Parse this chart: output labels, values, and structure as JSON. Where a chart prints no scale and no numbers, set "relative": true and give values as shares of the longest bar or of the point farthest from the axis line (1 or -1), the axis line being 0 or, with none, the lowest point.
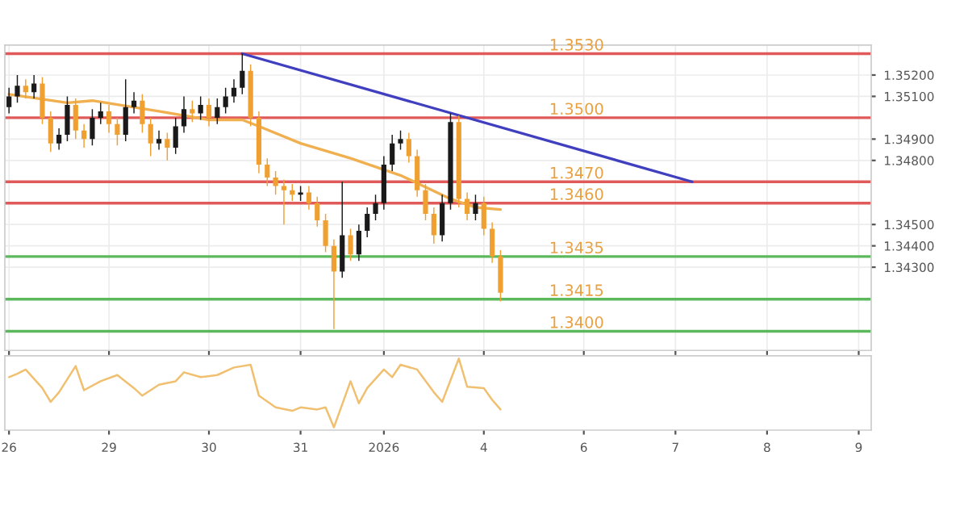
{
  "chart_data": [
    {
      "type": "candlestick",
      "categories": [
        "26",
        null,
        null,
        null,
        null,
        null,
        null,
        null,
        null,
        null,
        null,
        null,
        "29",
        null,
        null,
        null,
        null,
        null,
        null,
        null,
        null,
        null,
        null,
        null,
        "30",
        null,
        null,
        null,
        null,
        null,
        null,
        null,
        null,
        null,
        null,
        "31",
        null,
        null,
        null,
        null,
        null,
        null,
        null,
        null,
        null,
        "2026",
        null,
        null,
        null,
        null,
        null,
        null,
        null,
        null,
        null,
        null,
        null,
        "4",
        null,
        null,
        null,
        null,
        null,
        null,
        null,
        null,
        null,
        null,
        null,
        "6",
        null,
        null,
        null,
        null,
        null,
        null,
        null,
        null,
        null,
        null,
        "7",
        null,
        null,
        null,
        null,
        null,
        null,
        null,
        null,
        null,
        null,
        "8",
        null,
        null,
        null,
        null,
        null,
        null,
        null,
        null,
        null,
        null,
        "9",
        null
      ],
      "ohlc": [
        [
          1.3505,
          1.3514,
          1.3502,
          1.351
        ],
        [
          1.351,
          1.352,
          1.3507,
          1.3515
        ],
        [
          1.3515,
          1.3518,
          1.3509,
          1.3512
        ],
        [
          1.3512,
          1.352,
          1.3509,
          1.3516
        ],
        [
          1.3516,
          1.3519,
          1.3497,
          1.35
        ],
        [
          1.35,
          1.3503,
          1.3484,
          1.3488
        ],
        [
          1.3488,
          1.3495,
          1.3485,
          1.3492
        ],
        [
          1.3492,
          1.351,
          1.3489,
          1.3506
        ],
        [
          1.3506,
          1.3509,
          1.349,
          1.3494
        ],
        [
          1.3494,
          1.3497,
          1.3486,
          1.349
        ],
        [
          1.349,
          1.3504,
          1.3487,
          1.35
        ],
        [
          1.35,
          1.3507,
          1.3497,
          1.3503
        ],
        [
          1.3503,
          1.3506,
          1.3493,
          1.3497
        ],
        [
          1.3497,
          1.35,
          1.3487,
          1.3492
        ],
        [
          1.3492,
          1.3518,
          1.3489,
          1.3505
        ],
        [
          1.3505,
          1.3512,
          1.3502,
          1.3508
        ],
        [
          1.3508,
          1.3511,
          1.3493,
          1.3497
        ],
        [
          1.3497,
          1.35,
          1.3482,
          1.3488
        ],
        [
          1.3488,
          1.3494,
          1.3485,
          1.349
        ],
        [
          1.349,
          1.3493,
          1.348,
          1.3486
        ],
        [
          1.3486,
          1.35,
          1.3483,
          1.3496
        ],
        [
          1.3496,
          1.351,
          1.3493,
          1.3504
        ],
        [
          1.3504,
          1.3508,
          1.3498,
          1.3502
        ],
        [
          1.3502,
          1.351,
          1.3499,
          1.3506
        ],
        [
          1.3506,
          1.3509,
          1.3496,
          1.35
        ],
        [
          1.35,
          1.3509,
          1.3497,
          1.3505
        ],
        [
          1.3505,
          1.3514,
          1.3502,
          1.351
        ],
        [
          1.351,
          1.3518,
          1.3507,
          1.3514
        ],
        [
          1.3514,
          1.353,
          1.3511,
          1.3522
        ],
        [
          1.3522,
          1.3525,
          1.3496,
          1.35
        ],
        [
          1.35,
          1.3503,
          1.3474,
          1.3478
        ],
        [
          1.3478,
          1.3481,
          1.3468,
          1.3472
        ],
        [
          1.3472,
          1.3475,
          1.3464,
          1.3468
        ],
        [
          1.3468,
          1.3471,
          1.345,
          1.3466
        ],
        [
          1.3466,
          1.3469,
          1.3461,
          1.3464
        ],
        [
          1.3464,
          1.3468,
          1.3461,
          1.3465
        ],
        [
          1.3465,
          1.3468,
          1.3457,
          1.346
        ],
        [
          1.346,
          1.3463,
          1.3449,
          1.3452
        ],
        [
          1.3452,
          1.3455,
          1.3437,
          1.344
        ],
        [
          1.344,
          1.3443,
          1.3401,
          1.3428
        ],
        [
          1.3428,
          1.347,
          1.3425,
          1.3445
        ],
        [
          1.3445,
          1.3448,
          1.3433,
          1.3436
        ],
        [
          1.3436,
          1.345,
          1.3433,
          1.3447
        ],
        [
          1.3447,
          1.3458,
          1.3444,
          1.3455
        ],
        [
          1.3455,
          1.3464,
          1.3452,
          1.346
        ],
        [
          1.346,
          1.3482,
          1.3457,
          1.3478
        ],
        [
          1.3478,
          1.3492,
          1.3475,
          1.3488
        ],
        [
          1.3488,
          1.3494,
          1.3485,
          1.349
        ],
        [
          1.349,
          1.3493,
          1.3479,
          1.3482
        ],
        [
          1.3482,
          1.3485,
          1.3463,
          1.3466
        ],
        [
          1.3466,
          1.3469,
          1.3452,
          1.3455
        ],
        [
          1.3455,
          1.3458,
          1.3441,
          1.3445
        ],
        [
          1.3445,
          1.3464,
          1.3442,
          1.346
        ],
        [
          1.346,
          1.3502,
          1.3457,
          1.3498
        ],
        [
          1.3498,
          1.3501,
          1.3458,
          1.3462
        ],
        [
          1.3462,
          1.3465,
          1.3452,
          1.3455
        ],
        [
          1.3455,
          1.3464,
          1.3452,
          1.346
        ],
        [
          1.346,
          1.3463,
          1.3445,
          1.3448
        ],
        [
          1.3448,
          1.3451,
          1.3432,
          1.3435
        ],
        [
          1.3435,
          1.3438,
          1.3414,
          1.3418
        ],
        null,
        null,
        null,
        null,
        null,
        null,
        null,
        null,
        null,
        null,
        null,
        null,
        null,
        null,
        null,
        null,
        null,
        null,
        null,
        null,
        null,
        null,
        null,
        null,
        null,
        null,
        null,
        null,
        null,
        null,
        null,
        null,
        null,
        null,
        null,
        null,
        null,
        null,
        null,
        null,
        null,
        null,
        null,
        null
      ],
      "colors": [
        "#1a1a1a",
        "#1a1a1a",
        "#f0a030",
        "#1a1a1a",
        "#f0a030",
        "#f0a030",
        "#1a1a1a",
        "#1a1a1a",
        "#f0a030",
        "#f0a030",
        "#1a1a1a",
        "#1a1a1a",
        "#f0a030",
        "#f0a030",
        "#1a1a1a",
        "#1a1a1a",
        "#f0a030",
        "#f0a030",
        "#1a1a1a",
        "#f0a030",
        "#1a1a1a",
        "#1a1a1a",
        "#f0a030",
        "#1a1a1a",
        "#f0a030",
        "#1a1a1a",
        "#1a1a1a",
        "#1a1a1a",
        "#1a1a1a",
        "#f0a030",
        "#f0a030",
        "#f0a030",
        "#f0a030",
        "#f0a030",
        "#f0a030",
        "#1a1a1a",
        "#f0a030",
        "#f0a030",
        "#f0a030",
        "#f0a030",
        "#1a1a1a",
        "#f0a030",
        "#1a1a1a",
        "#1a1a1a",
        "#1a1a1a",
        "#1a1a1a",
        "#1a1a1a",
        "#1a1a1a",
        "#f0a030",
        "#f0a030",
        "#f0a030",
        "#f0a030",
        "#1a1a1a",
        "#1a1a1a",
        "#f0a030",
        "#f0a030",
        "#1a1a1a",
        "#f0a030",
        "#f0a030",
        "#f0a030",
        null,
        null,
        null,
        null,
        null,
        null,
        null,
        null,
        null,
        null,
        null,
        null,
        null,
        null,
        null,
        null,
        null,
        null,
        null,
        null,
        null,
        null,
        null,
        null,
        null,
        null,
        null,
        null,
        null,
        null,
        null,
        null,
        null,
        null,
        null,
        null,
        null,
        null,
        null,
        null,
        null,
        null,
        null,
        null
      ],
      "series": [
        {
          "type": "line",
          "color": "#3f3fbf",
          "values": [
            null,
            null,
            null,
            null,
            null,
            null,
            null,
            null,
            null,
            null,
            null,
            null,
            null,
            null,
            null,
            null,
            null,
            null,
            null,
            null,
            null,
            null,
            null,
            null,
            null,
            null,
            null,
            null,
            1.353,
            null,
            null,
            null,
            null,
            null,
            null,
            null,
            null,
            null,
            null,
            null,
            null,
            null,
            null,
            null,
            null,
            null,
            null,
            null,
            null,
            null,
            null,
            null,
            null,
            null,
            null,
            null,
            null,
            null,
            null,
            null,
            null,
            null,
            null,
            null,
            null,
            null,
            null,
            null,
            null,
            null,
            null,
            null,
            null,
            null,
            null,
            null,
            null,
            null,
            null,
            null,
            null,
            null,
            1.347,
            null,
            null,
            null,
            null,
            null,
            null,
            null,
            null,
            null,
            null,
            null,
            null,
            null,
            null,
            null,
            null,
            null,
            null,
            null,
            null,
            null
          ]
        },
        {
          "type": "line",
          "color": "#f0b050",
          "values": [
            1.3511,
            null,
            null,
            null,
            null,
            null,
            null,
            1.3507,
            null,
            null,
            1.3508,
            null,
            null,
            null,
            null,
            null,
            null,
            null,
            1.3503,
            null,
            null,
            null,
            null,
            null,
            1.3499,
            null,
            null,
            null,
            1.3499,
            null,
            1.3496,
            null,
            null,
            null,
            null,
            1.3488,
            null,
            null,
            null,
            null,
            null,
            1.3481,
            null,
            null,
            null,
            null,
            null,
            1.3473,
            null,
            null,
            null,
            null,
            null,
            1.3462,
            null,
            null,
            1.3458,
            null,
            null,
            1.3457,
            null,
            null,
            null,
            null,
            null,
            null,
            null,
            null,
            null,
            null,
            null,
            null,
            null,
            null,
            null,
            null,
            null,
            null,
            null,
            null,
            null,
            null,
            null,
            null,
            null,
            null,
            null,
            null,
            null,
            null,
            null,
            null,
            null,
            null,
            null,
            null,
            null,
            null,
            null,
            null,
            null,
            null,
            null,
            null
          ]
        }
      ],
      "ref_lines": [
        {
          "axis": "y",
          "value": 1.353,
          "label": "1.3530",
          "color": "#e05a5a"
        },
        {
          "axis": "y",
          "value": 1.35,
          "label": "1.3500",
          "color": "#e05a5a"
        },
        {
          "axis": "y",
          "value": 1.347,
          "label": "1.3470",
          "color": "#e05a5a"
        },
        {
          "axis": "y",
          "value": 1.346,
          "label": "1.3460",
          "color": "#e05a5a"
        },
        {
          "axis": "y",
          "value": 1.3435,
          "label": "1.3435",
          "color": "#5cb85c"
        },
        {
          "axis": "y",
          "value": 1.3415,
          "label": "1.3415",
          "color": "#5cb85c"
        },
        {
          "axis": "y",
          "value": 1.34,
          "label": "1.3400",
          "color": "#5cb85c"
        }
      ],
      "ylim": [
        1.3391,
        1.3534
      ],
      "yticks": [
        {
          "value": 1.343,
          "label": "1.34300"
        },
        {
          "value": 1.344,
          "label": "1.34400"
        },
        {
          "value": 1.345,
          "label": "1.34500"
        },
        {
          "value": 1.348,
          "label": "1.34800"
        },
        {
          "value": 1.349,
          "label": "1.34900"
        },
        {
          "value": 1.351,
          "label": "1.35100"
        },
        {
          "value": 1.352,
          "label": "1.35200"
        }
      ],
      "tick_labels": "y",
      "grid": true
    },
    {
      "type": "line",
      "relative": true,
      "tick_labels": "x",
      "categories": [
        "26",
        null,
        null,
        null,
        null,
        null,
        null,
        null,
        null,
        null,
        null,
        null,
        "29",
        null,
        null,
        null,
        null,
        null,
        null,
        null,
        null,
        null,
        null,
        null,
        "30",
        null,
        null,
        null,
        null,
        null,
        null,
        null,
        null,
        null,
        null,
        "31",
        null,
        null,
        null,
        null,
        null,
        null,
        null,
        null,
        null,
        "2026",
        null,
        null,
        null,
        null,
        null,
        null,
        null,
        null,
        null,
        null,
        null,
        "4",
        null,
        null,
        null,
        null,
        null,
        null,
        null,
        null,
        null,
        null,
        null,
        "6",
        null,
        null,
        null,
        null,
        null,
        null,
        null,
        null,
        null,
        null,
        "7",
        null,
        null,
        null,
        null,
        null,
        null,
        null,
        null,
        null,
        null,
        "8",
        null,
        null,
        null,
        null,
        null,
        null,
        null,
        null,
        null,
        null,
        "9",
        null
      ],
      "series": [
        {
          "color": "#f0c070",
          "values": [
            0.73,
            0.78,
            0.84,
            null,
            0.57,
            0.37,
            0.51,
            null,
            0.89,
            0.54,
            null,
            0.67,
            null,
            0.76,
            null,
            0.57,
            0.46,
            null,
            0.62,
            null,
            0.67,
            0.8,
            null,
            0.73,
            null,
            0.76,
            null,
            0.87,
            null,
            0.91,
            0.46,
            null,
            0.29,
            null,
            0.24,
            0.29,
            null,
            0.26,
            0.29,
            0,
            null,
            0.67,
            0.35,
            0.57,
            null,
            0.84,
            0.73,
            0.91,
            null,
            0.84,
            null,
            0.51,
            0.37,
            null,
            1,
            0.59,
            null,
            0.57,
            0.4,
            0.26,
            null,
            null,
            null,
            null,
            null,
            null,
            null,
            null,
            null,
            null,
            null,
            null,
            null,
            null,
            null,
            null,
            null,
            null,
            null,
            null,
            null,
            null,
            null,
            null,
            null,
            null,
            null,
            null,
            null,
            null,
            null,
            null,
            null,
            null,
            null,
            null,
            null,
            null,
            null,
            null,
            null,
            null,
            null,
            null
          ]
        }
      ]
    }
  ]
}
